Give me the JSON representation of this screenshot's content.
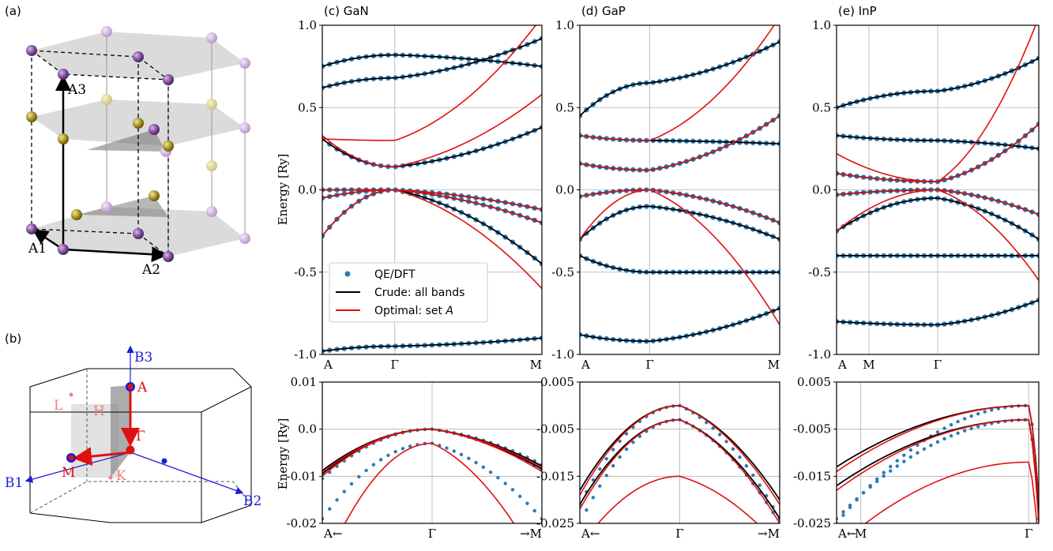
{
  "panels": {
    "a": "(a)",
    "b": "(b)"
  },
  "crystal": {
    "labels": [
      "A1",
      "A2",
      "A3"
    ],
    "colors": {
      "ga": "#7b4b96",
      "ga_light": "#c8a8d8",
      "n": "#a08c1c",
      "n_light": "#d6cc8a",
      "plane": "#bdbdbd"
    }
  },
  "brillouin": {
    "axes": [
      "B1",
      "B2",
      "B3"
    ],
    "points": [
      "A",
      "L",
      "H",
      "Γ",
      "M",
      "K"
    ],
    "colors": {
      "axis": "#1c1cd8",
      "path": "#e01010",
      "pale": "#f08080"
    }
  },
  "legend": {
    "items": [
      {
        "label": "QE/DFT",
        "style": "dots",
        "color": "#2b7bb4"
      },
      {
        "label": "Crude: all bands",
        "style": "line",
        "color": "#000000"
      },
      {
        "label": "Optimal: set ",
        "italic": "A",
        "style": "line",
        "color": "#e01010"
      }
    ]
  },
  "chart_data": [
    {
      "type": "line",
      "title": "(c) GaN",
      "ylabel": "Energy [Ry]",
      "ylim": [
        -1.0,
        1.0
      ],
      "yticks": [
        "1.0",
        "0.5",
        "0.0",
        "-0.5",
        "-1.0"
      ],
      "yticks_values": [
        1.0,
        0.5,
        0.0,
        -0.5,
        -1.0
      ],
      "xticks": [
        "A",
        "Γ",
        "M"
      ],
      "xticks_pos": [
        0,
        0.33,
        1
      ],
      "grid": true,
      "legend_position": "lower-left",
      "series": [
        {
          "name": "QE/DFT",
          "style": "dots",
          "values": [
            [
              0.31,
              0.14,
              0.38
            ],
            [
              0.0,
              0.0,
              -0.12
            ],
            [
              -0.05,
              0.0,
              -0.2
            ],
            [
              -0.28,
              0.0,
              -0.45
            ],
            [
              0.62,
              0.68,
              0.92
            ],
            [
              0.75,
              0.82,
              0.75
            ],
            [
              -0.98,
              -0.95,
              -0.9
            ]
          ]
        },
        {
          "name": "Crude: all bands",
          "style": "line",
          "values": [
            [
              0.31,
              0.14,
              0.38
            ],
            [
              0.0,
              0.0,
              -0.12
            ],
            [
              -0.05,
              0.0,
              -0.2
            ],
            [
              -0.28,
              0.0,
              -0.45
            ],
            [
              0.62,
              0.68,
              0.92
            ],
            [
              0.75,
              0.82,
              0.75
            ],
            [
              -0.98,
              -0.95,
              -0.9
            ]
          ]
        },
        {
          "name": "Optimal: set A",
          "style": "line",
          "values": [
            [
              0.33,
              0.14,
              0.58
            ],
            [
              0.31,
              0.3,
              1.05
            ],
            [
              0.0,
              0.0,
              -0.12
            ],
            [
              -0.05,
              0.0,
              -0.2
            ],
            [
              -0.28,
              0.0,
              -0.6
            ]
          ]
        }
      ]
    },
    {
      "type": "line",
      "title": "(d) GaP",
      "ylim": [
        -1.0,
        1.0
      ],
      "yticks": [
        "1.0",
        "0.5",
        "0.0",
        "-0.5",
        "-1.0"
      ],
      "yticks_values": [
        1.0,
        0.5,
        0.0,
        -0.5,
        -1.0
      ],
      "xticks": [
        "A",
        "Γ",
        "M"
      ],
      "xticks_pos": [
        0,
        0.35,
        1
      ],
      "grid": true,
      "series": [
        {
          "name": "QE/DFT",
          "style": "dots",
          "values": [
            [
              0.16,
              0.12,
              0.45
            ],
            [
              0.33,
              0.3,
              0.28
            ],
            [
              -0.04,
              0.0,
              -0.2
            ],
            [
              -0.3,
              -0.1,
              -0.3
            ],
            [
              -0.88,
              -0.92,
              -0.72
            ],
            [
              -0.4,
              -0.5,
              -0.5
            ],
            [
              0.45,
              0.65,
              0.9
            ]
          ]
        },
        {
          "name": "Crude: all bands",
          "style": "line",
          "values": [
            [
              0.16,
              0.12,
              0.45
            ],
            [
              0.33,
              0.3,
              0.28
            ],
            [
              -0.04,
              0.0,
              -0.2
            ],
            [
              -0.3,
              -0.1,
              -0.3
            ],
            [
              -0.88,
              -0.92,
              -0.72
            ],
            [
              -0.4,
              -0.5,
              -0.5
            ],
            [
              0.45,
              0.65,
              0.9
            ]
          ]
        },
        {
          "name": "Optimal: set A",
          "style": "line",
          "values": [
            [
              0.16,
              0.12,
              0.45
            ],
            [
              0.33,
              0.3,
              1.05
            ],
            [
              -0.04,
              0.0,
              -0.2
            ],
            [
              -0.3,
              0.0,
              -0.82
            ]
          ]
        }
      ]
    },
    {
      "type": "line",
      "title": "(e) InP",
      "ylim": [
        -1.0,
        1.0
      ],
      "yticks": [
        "1.0",
        "0.5",
        "0.0",
        "-0.5",
        "-1.0"
      ],
      "yticks_values": [
        1.0,
        0.5,
        0.0,
        -0.5,
        -1.0
      ],
      "xticks": [
        "A",
        "M",
        "Γ"
      ],
      "xticks_pos": [
        0,
        0.16,
        0.5
      ],
      "grid": true,
      "series": [
        {
          "name": "QE/DFT",
          "style": "dots",
          "values": [
            [
              0.1,
              0.05,
              0.4
            ],
            [
              0.33,
              0.3,
              0.25
            ],
            [
              -0.03,
              0.0,
              -0.15
            ],
            [
              -0.25,
              -0.05,
              -0.3
            ],
            [
              -0.8,
              -0.82,
              -0.67
            ],
            [
              -0.4,
              -0.4,
              -0.4
            ],
            [
              0.5,
              0.6,
              0.8
            ]
          ]
        },
        {
          "name": "Crude: all bands",
          "style": "line",
          "values": [
            [
              0.1,
              0.05,
              0.4
            ],
            [
              0.33,
              0.3,
              0.25
            ],
            [
              -0.03,
              0.0,
              -0.15
            ],
            [
              -0.25,
              -0.05,
              -0.3
            ],
            [
              -0.8,
              -0.82,
              -0.67
            ],
            [
              -0.4,
              -0.4,
              -0.4
            ],
            [
              0.5,
              0.6,
              0.8
            ]
          ]
        },
        {
          "name": "Optimal: set A",
          "style": "line",
          "values": [
            [
              0.22,
              0.05,
              0.4
            ],
            [
              0.1,
              0.05,
              1.05
            ],
            [
              -0.03,
              0.0,
              -0.15
            ],
            [
              -0.25,
              0.0,
              -0.55
            ]
          ]
        }
      ]
    },
    {
      "type": "line",
      "ylabel": "Energy [Ry]",
      "ylim": [
        -0.02,
        0.01
      ],
      "yticks": [
        "0.01",
        "0.0",
        "-0.01",
        "-0.02"
      ],
      "yticks_values": [
        0.01,
        0.0,
        -0.01,
        -0.02
      ],
      "xticks": [
        "A←",
        "Γ",
        "→M"
      ],
      "xticks_pos": [
        0,
        0.5,
        1
      ],
      "grid": true,
      "series": [
        {
          "name": "QE/DFT",
          "style": "dots",
          "values": [
            [
              -0.0105,
              0.0,
              -0.0085
            ],
            [
              -0.0095,
              0.0,
              -0.0075
            ],
            [
              -0.019,
              -0.003,
              -0.019
            ]
          ]
        },
        {
          "name": "Crude: all bands",
          "style": "line",
          "values": [
            [
              -0.0095,
              0.0,
              -0.0085
            ],
            [
              -0.0088,
              0.0,
              -0.0078
            ]
          ]
        },
        {
          "name": "Optimal: set A",
          "style": "line",
          "values": [
            [
              -0.01,
              0.0,
              -0.009
            ],
            [
              -0.0092,
              0.0,
              -0.0082
            ],
            [
              -0.03,
              -0.003,
              -0.03
            ]
          ]
        }
      ]
    },
    {
      "type": "line",
      "ylim": [
        -0.025,
        0.005
      ],
      "yticks": [
        "0.005",
        "-0.005",
        "-0.015",
        "-0.025"
      ],
      "yticks_values": [
        0.005,
        -0.005,
        -0.015,
        -0.025
      ],
      "xticks": [
        "A←",
        "Γ",
        "→M"
      ],
      "xticks_pos": [
        0,
        0.5,
        1
      ],
      "grid": true,
      "series": [
        {
          "name": "QE/DFT",
          "style": "dots",
          "values": [
            [
              -0.021,
              0.0,
              -0.024
            ],
            [
              -0.025,
              -0.003,
              -0.025
            ]
          ]
        },
        {
          "name": "Crude: all bands",
          "style": "line",
          "values": [
            [
              -0.018,
              0.0,
              -0.02
            ],
            [
              -0.021,
              -0.003,
              -0.024
            ]
          ]
        },
        {
          "name": "Optimal: set A",
          "style": "line",
          "values": [
            [
              -0.019,
              0.0,
              -0.021
            ],
            [
              -0.022,
              -0.003,
              -0.025
            ],
            [
              -0.03,
              -0.015,
              -0.03
            ]
          ]
        }
      ]
    },
    {
      "type": "line",
      "ylim": [
        -0.025,
        0.005
      ],
      "yticks": [
        "0.005",
        "-0.005",
        "-0.015",
        "-0.025"
      ],
      "yticks_values": [
        0.005,
        -0.005,
        -0.015,
        -0.025
      ],
      "xticks": [
        "A←",
        "M",
        "Γ"
      ],
      "xticks_pos": [
        0,
        0.12,
        0.95
      ],
      "grid": true,
      "series": [
        {
          "name": "QE/DFT",
          "style": "dots",
          "values": [
            [
              -0.025,
              0.0,
              -0.02
            ],
            [
              -0.024,
              -0.003,
              -0.024
            ]
          ]
        },
        {
          "name": "Crude: all bands",
          "style": "line",
          "values": [
            [
              -0.013,
              0.0,
              -0.02
            ],
            [
              -0.017,
              -0.003,
              -0.024
            ]
          ]
        },
        {
          "name": "Optimal: set A",
          "style": "line",
          "values": [
            [
              -0.014,
              0.0,
              -0.02
            ],
            [
              -0.018,
              -0.003,
              -0.025
            ],
            [
              -0.03,
              -0.012,
              -0.03
            ]
          ]
        }
      ]
    }
  ]
}
